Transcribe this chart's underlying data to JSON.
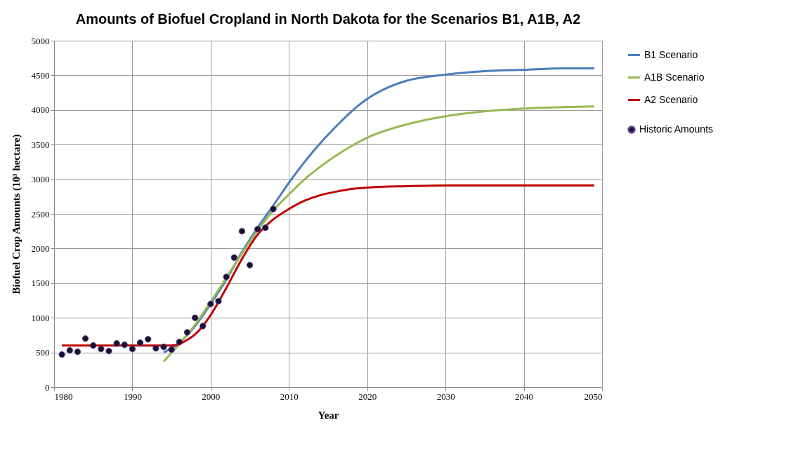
{
  "chart_data": {
    "type": "line",
    "title": "Amounts of Biofuel Cropland in North Dakota for the Scenarios B1, A1B, A2",
    "xlabel": "Year",
    "ylabel": "Biofuel Crop Amounts (10³ hectare)",
    "xlim": [
      1980,
      2050
    ],
    "xticks": [
      1980,
      1990,
      2000,
      2010,
      2020,
      2030,
      2040,
      2050
    ],
    "ylim": [
      0,
      5000
    ],
    "yticks": [
      0,
      500,
      1000,
      1500,
      2000,
      2500,
      3000,
      3500,
      4000,
      4500,
      5000
    ],
    "grid": true,
    "legend": "right",
    "marker": "none",
    "line_style": "solid",
    "series": [
      {
        "name": "B1 Scenario",
        "color": "#4a7ebb",
        "x": [
          1994,
          1996,
          1998,
          2000,
          2002,
          2004,
          2006,
          2008,
          2010,
          2012,
          2014,
          2016,
          2018,
          2020,
          2022,
          2025,
          2030,
          2035,
          2040,
          2045,
          2049
        ],
        "values": [
          500,
          640,
          880,
          1200,
          1550,
          1950,
          2300,
          2620,
          2950,
          3250,
          3520,
          3760,
          3980,
          4160,
          4290,
          4420,
          4510,
          4560,
          4580,
          4600,
          4600
        ]
      },
      {
        "name": "A1B Scenario",
        "color": "#98b954",
        "x": [
          1994,
          1996,
          1998,
          2000,
          2002,
          2004,
          2006,
          2008,
          2010,
          2012,
          2014,
          2016,
          2018,
          2020,
          2025,
          2030,
          2035,
          2040,
          2045,
          2049
        ],
        "values": [
          370,
          620,
          900,
          1230,
          1580,
          1930,
          2260,
          2550,
          2780,
          3000,
          3180,
          3340,
          3480,
          3600,
          3790,
          3910,
          3980,
          4020,
          4040,
          4050
        ]
      },
      {
        "name": "A2 Scenario",
        "color": "#c00000",
        "x": [
          1981,
          1995,
          1996,
          1997,
          1998,
          1999,
          2000,
          2002,
          2004,
          2006,
          2008,
          2010,
          2012,
          2014,
          2016,
          2018,
          2020,
          2025,
          2030,
          2049
        ],
        "values": [
          600,
          600,
          620,
          680,
          760,
          880,
          1040,
          1430,
          1850,
          2200,
          2420,
          2570,
          2690,
          2770,
          2820,
          2860,
          2880,
          2900,
          2910,
          2910
        ]
      },
      {
        "name": "Historic Amounts",
        "type": "scatter",
        "marker": "circle",
        "color": "#1a1030",
        "x": [
          1981,
          1982,
          1983,
          1984,
          1985,
          1986,
          1987,
          1988,
          1989,
          1990,
          1991,
          1992,
          1993,
          1994,
          1995,
          1996,
          1997,
          1998,
          1999,
          2000,
          2001,
          2002,
          2003,
          2004,
          2005,
          2006,
          2007,
          2008
        ],
        "values": [
          470,
          530,
          510,
          700,
          600,
          550,
          520,
          630,
          610,
          550,
          640,
          690,
          560,
          580,
          540,
          650,
          790,
          1000,
          880,
          1200,
          1240,
          1590,
          1870,
          2250,
          1760,
          2280,
          2300,
          2570
        ]
      }
    ]
  }
}
